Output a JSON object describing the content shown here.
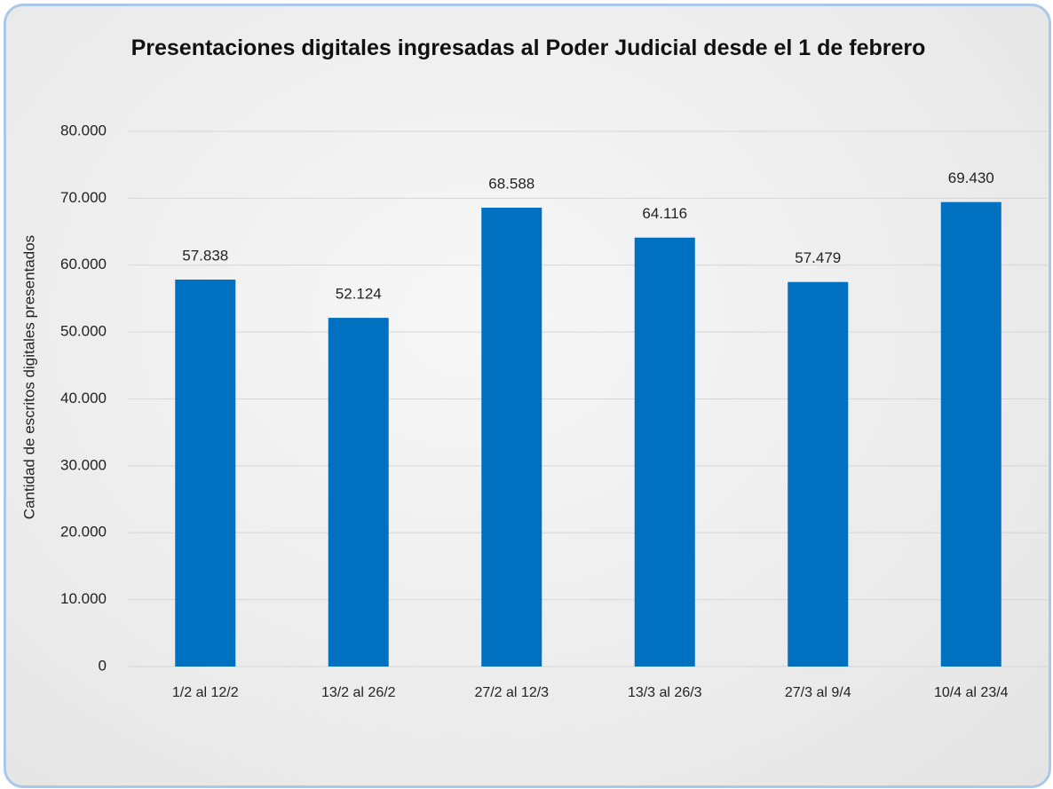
{
  "chart_data": {
    "type": "bar",
    "title": "Presentaciones digitales ingresadas al Poder Judicial desde el 1 de febrero",
    "y_label": "Cantidad de escritos digitales presentados",
    "categories": [
      "1/2 al 12/2",
      "13/2 al 26/2",
      "27/2 al 12/3",
      "13/3 al 26/3",
      "27/3 al 9/4",
      "10/4 al 23/4"
    ],
    "values": [
      57838,
      52124,
      68588,
      64116,
      57479,
      69430
    ],
    "value_labels": [
      "57.838",
      "52.124",
      "68.588",
      "64.116",
      "57.479",
      "69.430"
    ],
    "color": "#0070c0",
    "ylim": [
      0,
      80000
    ],
    "yticks": [
      0,
      {
        "value": 10000,
        "label": "10.000"
      },
      {
        "value": 20000,
        "label": "20.000"
      },
      {
        "value": 30000,
        "label": "30.000"
      },
      {
        "value": 40000,
        "label": "40.000"
      },
      {
        "value": 50000,
        "label": "50.000"
      },
      {
        "value": 60000,
        "label": "60.000"
      },
      {
        "value": 70000,
        "label": "70.000"
      },
      {
        "value": 80000,
        "label": "80.000"
      }
    ],
    "grid": true
  }
}
